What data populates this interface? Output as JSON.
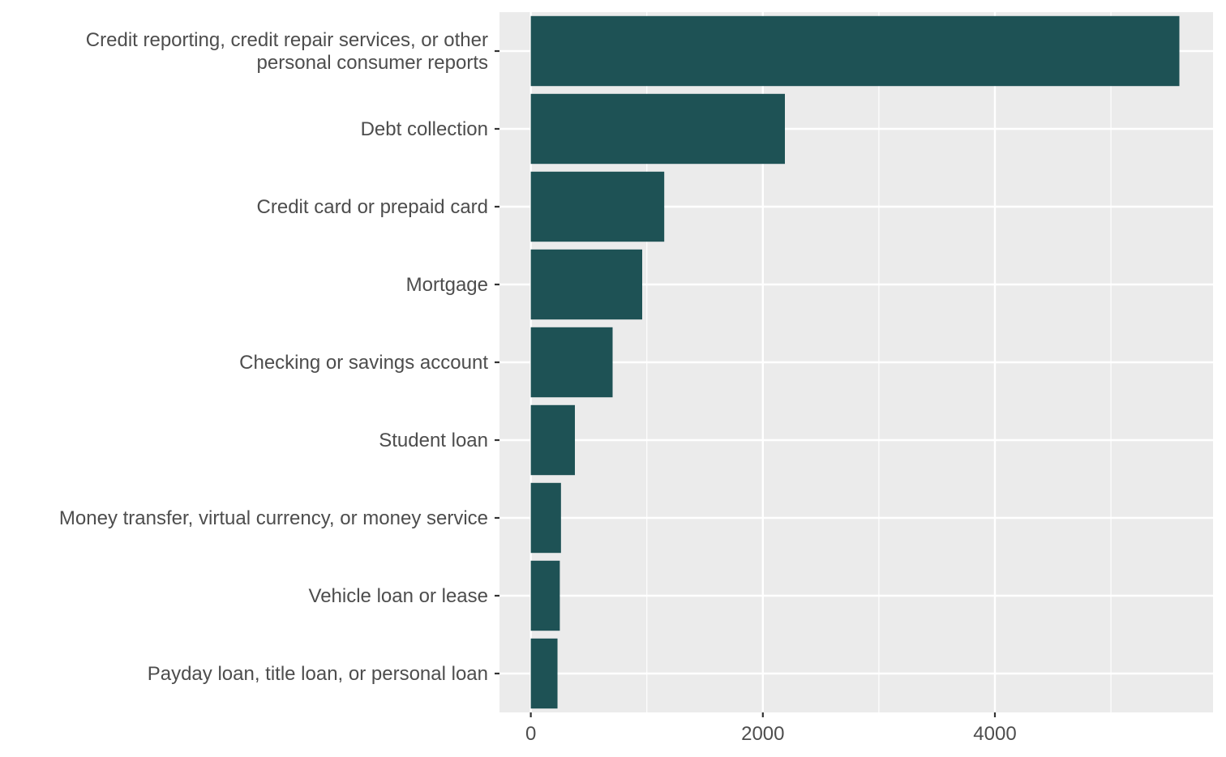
{
  "chart_data": {
    "type": "bar",
    "orientation": "horizontal",
    "title": "",
    "xlabel": "",
    "ylabel": "",
    "categories": [
      "Credit reporting, credit repair services, or other\npersonal consumer reports",
      "Debt collection",
      "Credit card or prepaid card",
      "Mortgage",
      "Checking or savings account",
      "Student loan",
      "Money transfer, virtual currency, or money service",
      "Vehicle loan or lease",
      "Payday loan, title loan, or personal loan"
    ],
    "values": [
      5590,
      2190,
      1150,
      960,
      705,
      380,
      260,
      250,
      230
    ],
    "xlim": [
      -270,
      5880
    ],
    "xticks": [
      0,
      2000,
      4000
    ],
    "xtick_labels": [
      "0",
      "2000",
      "4000"
    ],
    "x_minor_gridlines": [
      1000,
      3000,
      5000
    ],
    "grid": true,
    "legend": "none",
    "colors": {
      "bar": "#1e5255",
      "panel_background": "#ebebeb",
      "gridline": "#ffffff",
      "text": "#4d4d4d",
      "tick": "#333333"
    }
  }
}
